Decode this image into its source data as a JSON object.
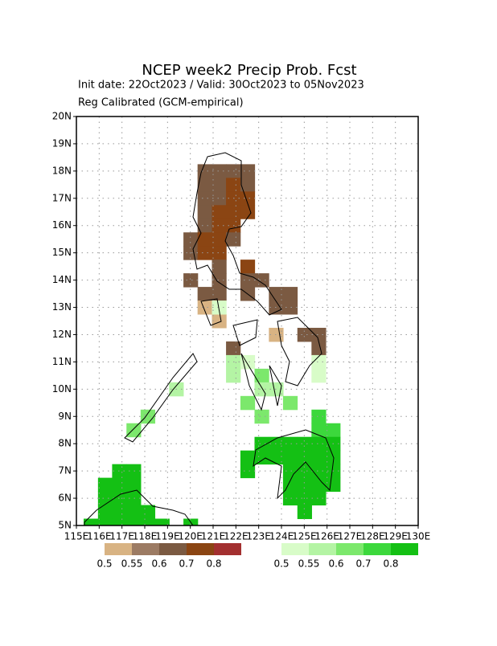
{
  "chart_data": {
    "type": "grid_map",
    "title": "NCEP week2 Precip Prob. Fcst",
    "subtitle_lines": [
      "Init date: 22Oct2023 / Valid: 30Oct2023 to 05Nov2023",
      "Reg Calibrated (GCM-empirical)"
    ],
    "xlim": [
      115,
      130
    ],
    "ylim": [
      5,
      20
    ],
    "xticks": [
      {
        "value": 115,
        "label": "115E"
      },
      {
        "value": 116,
        "label": "116E"
      },
      {
        "value": 117,
        "label": "117E"
      },
      {
        "value": 118,
        "label": "118E"
      },
      {
        "value": 119,
        "label": "119E"
      },
      {
        "value": 120,
        "label": "120E"
      },
      {
        "value": 121,
        "label": "121E"
      },
      {
        "value": 122,
        "label": "122E"
      },
      {
        "value": 123,
        "label": "123E"
      },
      {
        "value": 124,
        "label": "124E"
      },
      {
        "value": 125,
        "label": "125E"
      },
      {
        "value": 126,
        "label": "126E"
      },
      {
        "value": 127,
        "label": "127E"
      },
      {
        "value": 128,
        "label": "128E"
      },
      {
        "value": 129,
        "label": "129E"
      },
      {
        "value": 130,
        "label": "130E"
      }
    ],
    "yticks": [
      {
        "value": 5,
        "label": "5N"
      },
      {
        "value": 6,
        "label": "6N"
      },
      {
        "value": 7,
        "label": "7N"
      },
      {
        "value": 8,
        "label": "8N"
      },
      {
        "value": 9,
        "label": "9N"
      },
      {
        "value": 10,
        "label": "10N"
      },
      {
        "value": 11,
        "label": "11N"
      },
      {
        "value": 12,
        "label": "12N"
      },
      {
        "value": 13,
        "label": "13N"
      },
      {
        "value": 14,
        "label": "14N"
      },
      {
        "value": 15,
        "label": "15N"
      },
      {
        "value": 16,
        "label": "16N"
      },
      {
        "value": 17,
        "label": "17N"
      },
      {
        "value": 18,
        "label": "18N"
      },
      {
        "value": 19,
        "label": "19N"
      },
      {
        "value": 20,
        "label": "20N"
      }
    ],
    "grid": true,
    "below_levels": [
      0.5,
      0.55,
      0.6,
      0.7,
      0.8
    ],
    "below_colors": [
      "#d8b383",
      "#9c7b63",
      "#7b5a42",
      "#8b4513",
      "#a33030"
    ],
    "above_levels": [
      0.5,
      0.55,
      0.6,
      0.7,
      0.8
    ],
    "above_colors": [
      "#d8fcc8",
      "#b4f4a4",
      "#7ce86c",
      "#3cd83c",
      "#14c014"
    ],
    "below_cells": [
      [
        120.63,
        18,
        0.6
      ],
      [
        121.26,
        18,
        0.6
      ],
      [
        121.88,
        18,
        0.6
      ],
      [
        122.51,
        18,
        0.6
      ],
      [
        120.63,
        17.5,
        0.6
      ],
      [
        121.26,
        17.5,
        0.6
      ],
      [
        121.88,
        17.5,
        0.7
      ],
      [
        122.51,
        17.5,
        0.6
      ],
      [
        120.63,
        17,
        0.6
      ],
      [
        121.26,
        17,
        0.6
      ],
      [
        121.88,
        17,
        0.7
      ],
      [
        122.51,
        17,
        0.7
      ],
      [
        120.63,
        16.5,
        0.6
      ],
      [
        121.26,
        16.5,
        0.7
      ],
      [
        121.88,
        16.5,
        0.7
      ],
      [
        122.51,
        16.5,
        0.7
      ],
      [
        120.63,
        16,
        0.6
      ],
      [
        121.26,
        16,
        0.7
      ],
      [
        121.88,
        16,
        0.7
      ],
      [
        120.01,
        15.5,
        0.6
      ],
      [
        120.63,
        15.5,
        0.7
      ],
      [
        121.26,
        15.5,
        0.7
      ],
      [
        121.88,
        15.5,
        0.6
      ],
      [
        120.01,
        15,
        0.6
      ],
      [
        120.63,
        15,
        0.7
      ],
      [
        121.26,
        15,
        0.7
      ],
      [
        121.26,
        14.5,
        0.6
      ],
      [
        122.51,
        14.5,
        0.7
      ],
      [
        120.01,
        14,
        0.6
      ],
      [
        121.26,
        14,
        0.6
      ],
      [
        122.51,
        14,
        0.6
      ],
      [
        123.13,
        14,
        0.6
      ],
      [
        120.63,
        13.5,
        0.6
      ],
      [
        121.26,
        13.5,
        0.6
      ],
      [
        122.51,
        13.5,
        0.6
      ],
      [
        123.76,
        13.5,
        0.6
      ],
      [
        124.38,
        13.5,
        0.6
      ],
      [
        120.63,
        13,
        0.5
      ],
      [
        123.76,
        13,
        0.6
      ],
      [
        124.38,
        13,
        0.6
      ],
      [
        121.26,
        12.5,
        0.5
      ],
      [
        123.76,
        12,
        0.5
      ],
      [
        125.01,
        12,
        0.6
      ],
      [
        125.63,
        12,
        0.6
      ],
      [
        121.88,
        11.5,
        0.6
      ],
      [
        125.63,
        11.5,
        0.6
      ]
    ],
    "above_cells": [
      [
        121.26,
        13,
        0.5
      ],
      [
        121.88,
        11,
        0.55
      ],
      [
        122.51,
        11,
        0.5
      ],
      [
        125.63,
        11,
        0.5
      ],
      [
        121.88,
        10.5,
        0.55
      ],
      [
        123.13,
        10.5,
        0.6
      ],
      [
        125.63,
        10.5,
        0.5
      ],
      [
        119.38,
        10,
        0.55
      ],
      [
        123.13,
        10,
        0.55
      ],
      [
        123.76,
        10,
        0.55
      ],
      [
        122.51,
        9.5,
        0.6
      ],
      [
        124.38,
        9.5,
        0.6
      ],
      [
        118.13,
        9,
        0.6
      ],
      [
        123.13,
        9,
        0.6
      ],
      [
        125.63,
        9,
        0.7
      ],
      [
        117.51,
        8.5,
        0.6
      ],
      [
        125.63,
        8.5,
        0.7
      ],
      [
        126.26,
        8.5,
        0.7
      ],
      [
        123.13,
        8,
        0.8
      ],
      [
        123.76,
        8,
        0.8
      ],
      [
        124.38,
        8,
        0.8
      ],
      [
        125.01,
        8,
        0.8
      ],
      [
        125.63,
        8,
        0.8
      ],
      [
        126.26,
        8,
        0.8
      ],
      [
        122.51,
        7.5,
        0.8
      ],
      [
        123.13,
        7.5,
        0.8
      ],
      [
        123.76,
        7.5,
        0.8
      ],
      [
        124.38,
        7.5,
        0.8
      ],
      [
        125.01,
        7.5,
        0.8
      ],
      [
        125.63,
        7.5,
        0.8
      ],
      [
        126.26,
        7.5,
        0.8
      ],
      [
        122.51,
        7,
        0.8
      ],
      [
        124.38,
        7,
        0.8
      ],
      [
        125.01,
        7,
        0.8
      ],
      [
        125.63,
        7,
        0.8
      ],
      [
        126.26,
        7,
        0.8
      ],
      [
        124.38,
        6.5,
        0.8
      ],
      [
        125.01,
        6.5,
        0.8
      ],
      [
        125.63,
        6.5,
        0.8
      ],
      [
        126.26,
        6.5,
        0.8
      ],
      [
        124.38,
        6,
        0.8
      ],
      [
        125.01,
        6,
        0.8
      ],
      [
        125.63,
        6,
        0.8
      ],
      [
        125.01,
        5.5,
        0.8
      ],
      [
        117.51,
        7,
        0.8
      ],
      [
        116.88,
        7,
        0.8
      ],
      [
        116.26,
        6.5,
        0.8
      ],
      [
        116.88,
        6.5,
        0.8
      ],
      [
        117.51,
        6.5,
        0.8
      ],
      [
        116.26,
        6,
        0.8
      ],
      [
        116.88,
        6,
        0.8
      ],
      [
        117.51,
        6,
        0.8
      ],
      [
        116.26,
        5.5,
        0.8
      ],
      [
        116.88,
        5.5,
        0.8
      ],
      [
        117.51,
        5.5,
        0.8
      ],
      [
        118.13,
        5.5,
        0.8
      ],
      [
        115.63,
        5,
        0.8
      ],
      [
        116.26,
        5,
        0.8
      ],
      [
        116.88,
        5,
        0.8
      ],
      [
        117.51,
        5,
        0.8
      ],
      [
        118.13,
        5,
        0.8
      ],
      [
        118.76,
        5,
        0.8
      ],
      [
        120.01,
        5,
        0.8
      ]
    ]
  }
}
